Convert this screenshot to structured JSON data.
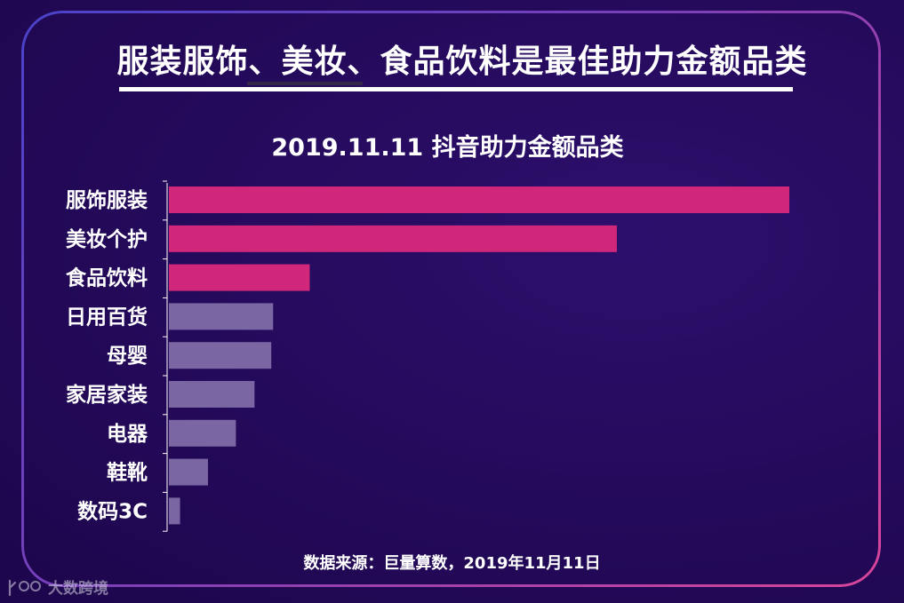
{
  "page": {
    "title": "服装服饰、美妆、食品饮料是最佳助力金额品类",
    "source": "数据来源：巨量算数，2019年11月11日",
    "watermark_text": "大数跨境"
  },
  "colors": {
    "highlight_bar": "#d1277a",
    "normal_bar": "#7a66a3",
    "axis": "#ffffff"
  },
  "chart_data": {
    "type": "bar",
    "orientation": "horizontal",
    "title": "2019.11.11 抖音助力金额品类",
    "categories": [
      "服饰服装",
      "美妆个护",
      "食品饮料",
      "日用百货",
      "母婴",
      "家居家装",
      "电器",
      "鞋靴",
      "数码3C"
    ],
    "values": [
      100,
      72.2,
      22.7,
      16.8,
      16.5,
      13.8,
      10.8,
      6.3,
      1.8
    ],
    "highlighted": [
      true,
      true,
      true,
      false,
      false,
      false,
      false,
      false,
      false
    ],
    "xlim": [
      0,
      100
    ],
    "grid": false,
    "legend": "none"
  }
}
